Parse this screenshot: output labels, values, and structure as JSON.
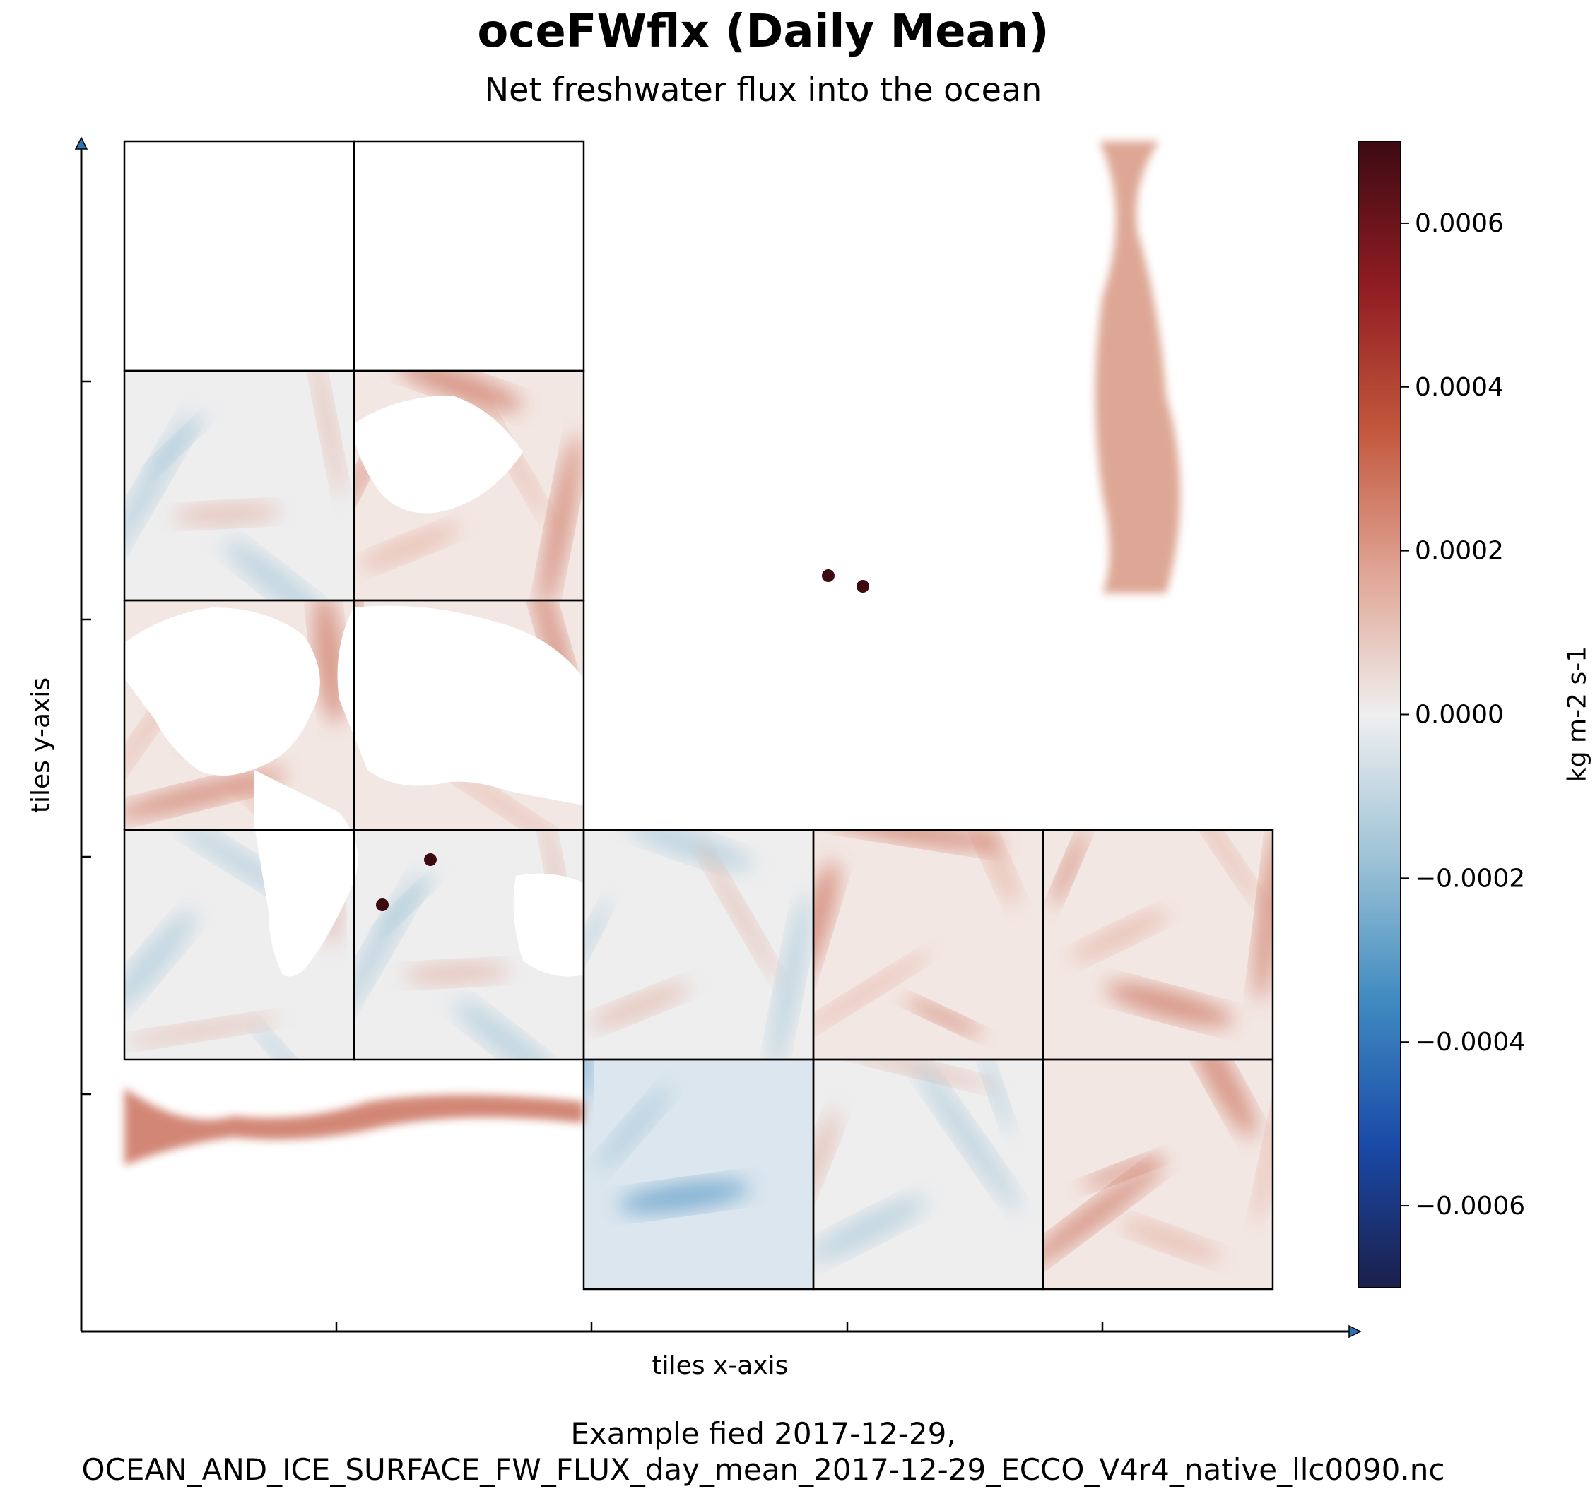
{
  "chart_data": {
    "type": "heatmap",
    "title": "oceFWflx (Daily Mean)",
    "subtitle": "Net freshwater flux into the ocean",
    "xlabel": "tiles x-axis",
    "ylabel": "tiles y-axis",
    "footer_line1": "Example fied 2017-12-29,",
    "footer_line2": "OCEAN_AND_ICE_SURFACE_FW_FLUX_day_mean_2017-12-29_ECCO_V4r4_native_llc0090.nc",
    "colorbar": {
      "label": "kg m-2 s-1",
      "vmin": -0.0007,
      "vmax": 0.0007,
      "ticks": [
        0.0006,
        0.0004,
        0.0002,
        0.0,
        -0.0002,
        -0.0004,
        -0.0006
      ],
      "tick_labels": [
        "0.0006",
        "0.0004",
        "0.0002",
        "0.0000",
        "−0.0002",
        "−0.0004",
        "−0.0006"
      ],
      "colormap": "RdBu_r",
      "colors": [
        "#1b1f4b",
        "#1a4aa8",
        "#3f8ac0",
        "#9ec3d6",
        "#efefef",
        "#e0a493",
        "#c2563c",
        "#8f1c22",
        "#3d0a12"
      ]
    },
    "tiles": {
      "grid_columns": 5,
      "grid_rows": 5,
      "cells": [
        {
          "col": 0,
          "row": 3,
          "signal": "mixed"
        },
        {
          "col": 0,
          "row": 2,
          "signal": "positive"
        },
        {
          "col": 0,
          "row": 1,
          "signal": "mixed"
        },
        {
          "col": 0,
          "row": 0,
          "signal": "empty"
        },
        {
          "col": 1,
          "row": 3,
          "signal": "mixed"
        },
        {
          "col": 1,
          "row": 2,
          "signal": "positive"
        },
        {
          "col": 1,
          "row": 1,
          "signal": "positive"
        },
        {
          "col": 1,
          "row": 0,
          "signal": "empty"
        },
        {
          "col": 2,
          "row": 4,
          "signal": "negative"
        },
        {
          "col": 2,
          "row": 3,
          "signal": "mixed"
        },
        {
          "col": 3,
          "row": 4,
          "signal": "mixed"
        },
        {
          "col": 3,
          "row": 3,
          "signal": "positive"
        },
        {
          "col": 4,
          "row": 4,
          "signal": "positive"
        },
        {
          "col": 4,
          "row": 3,
          "signal": "positive"
        }
      ]
    }
  }
}
